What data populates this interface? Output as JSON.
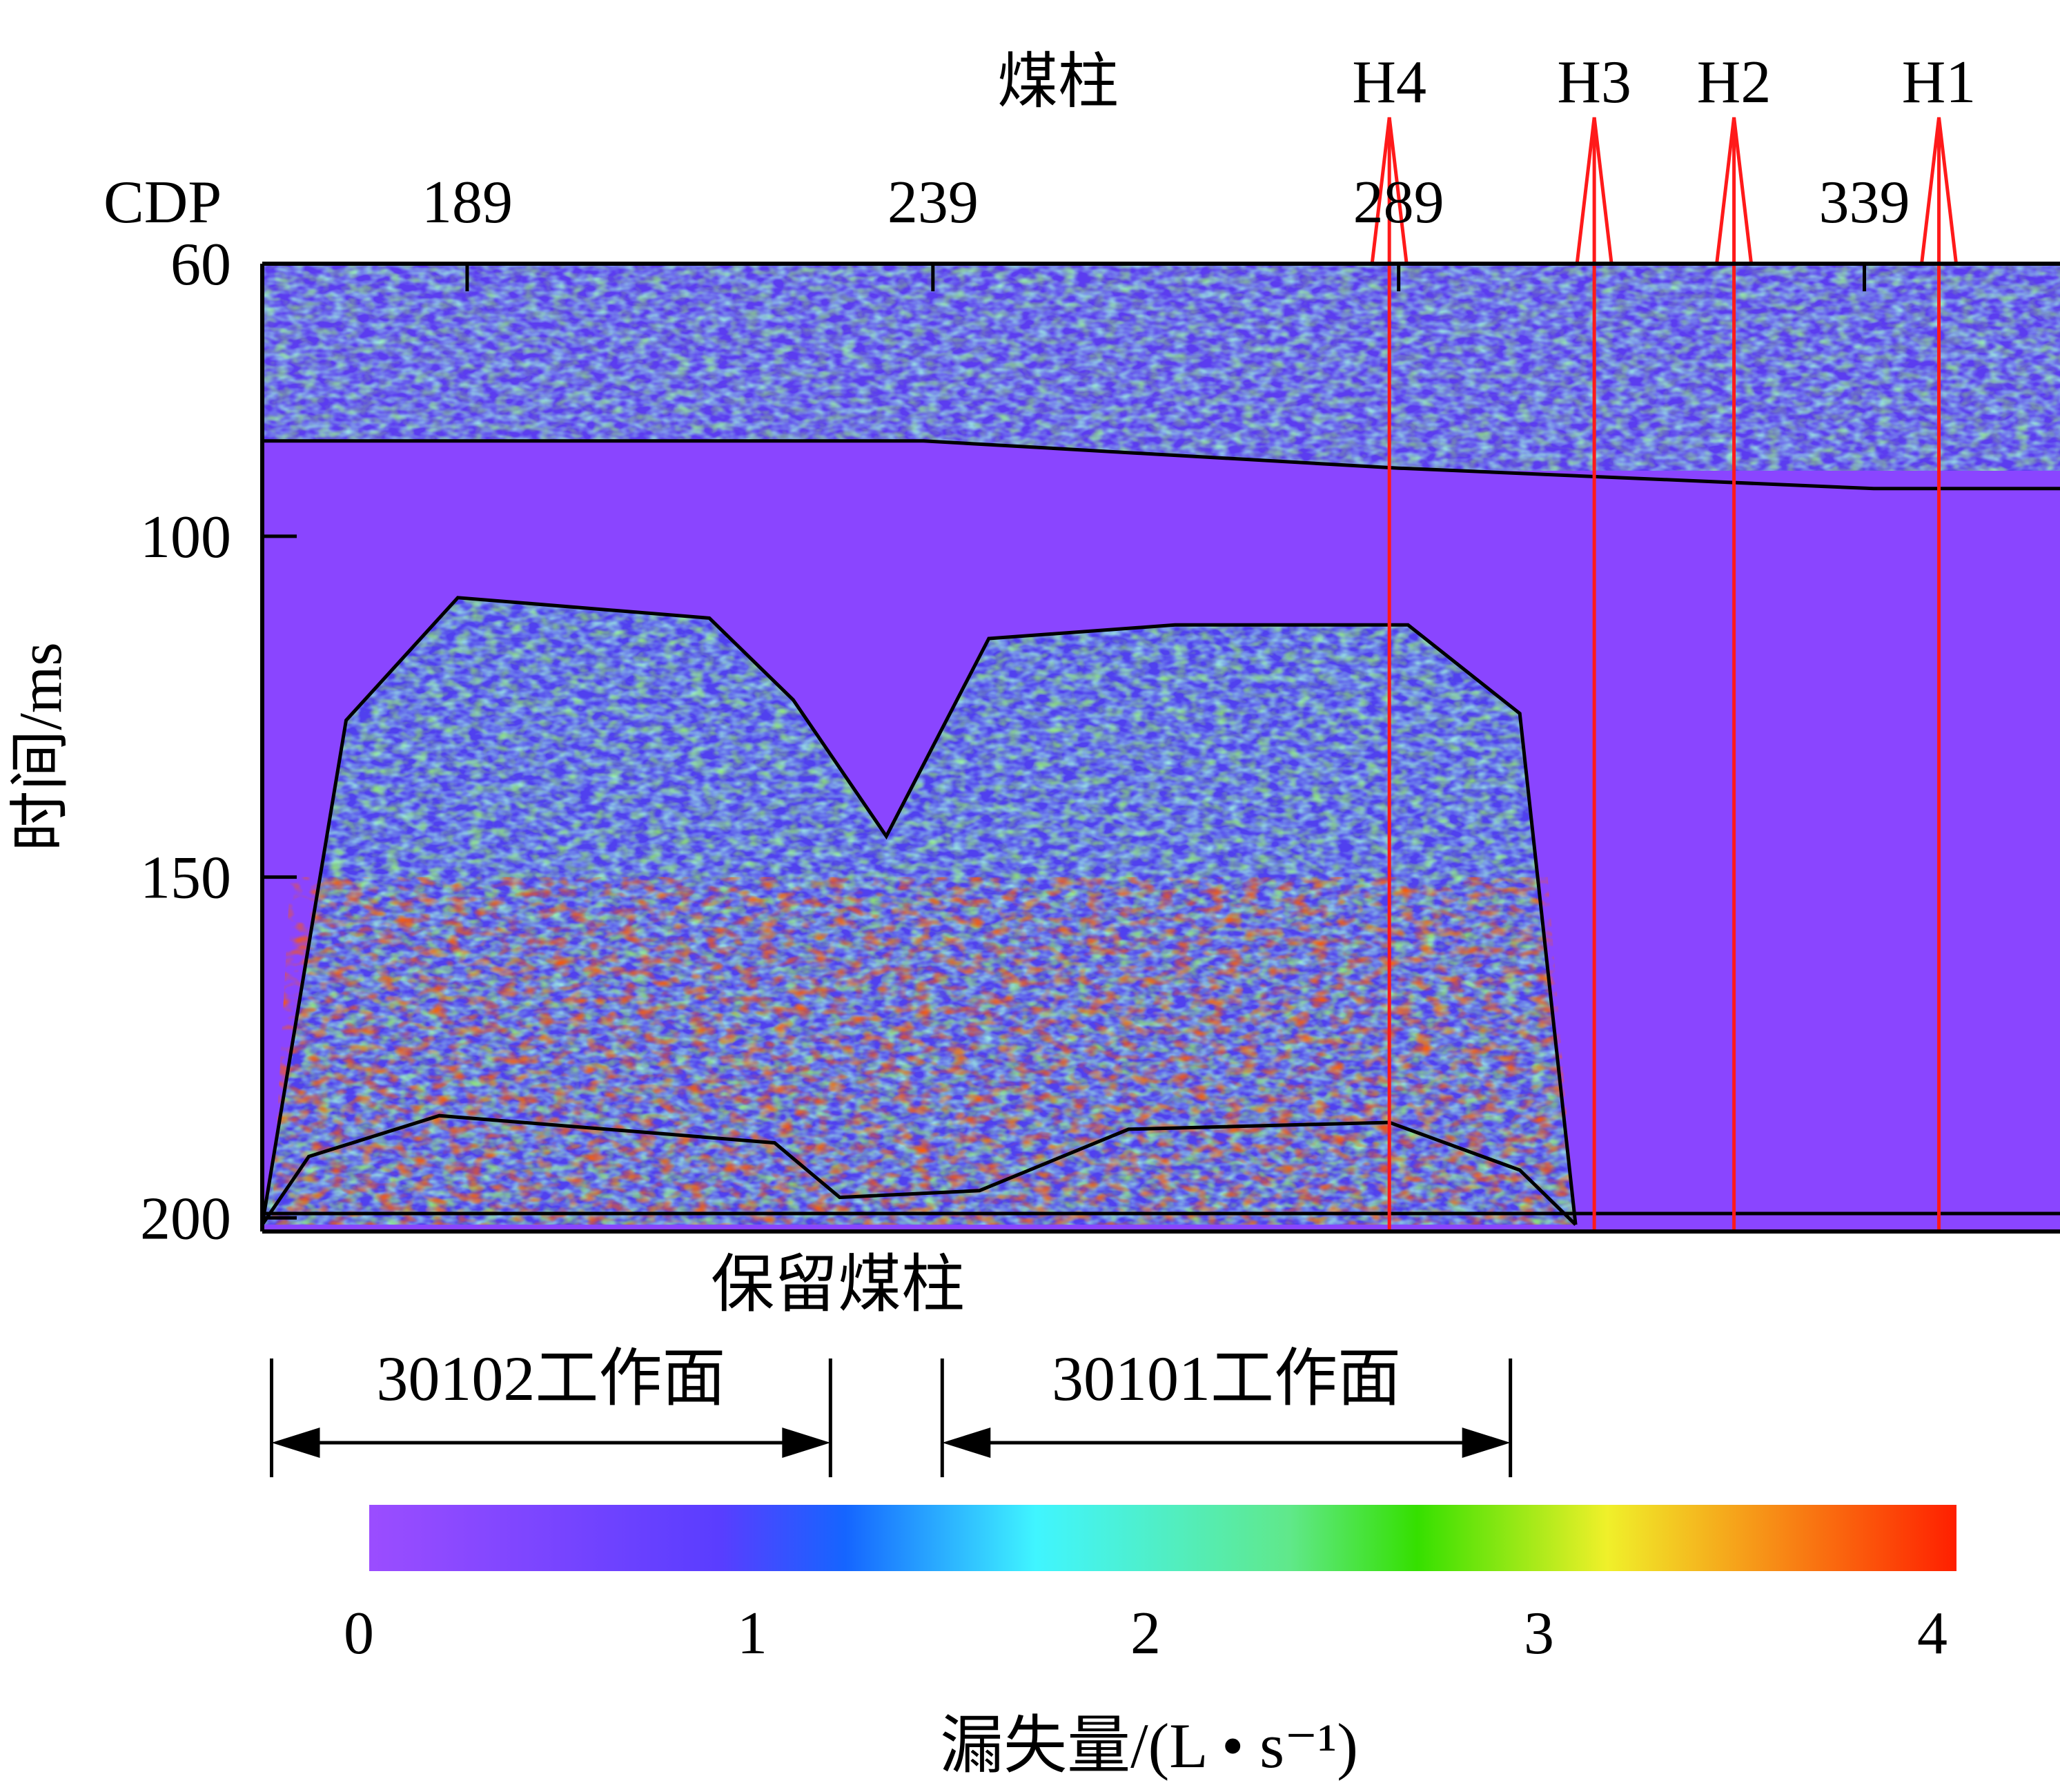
{
  "chart_data": {
    "type": "heatmap",
    "title": "",
    "ylabel": "时间/ms",
    "x_axis_title": "CDP",
    "x_ticks": [
      189,
      239,
      289,
      339
    ],
    "y_ticks": [
      60,
      100,
      150,
      200
    ],
    "xlim": [
      167,
      360
    ],
    "ylim": [
      60,
      202
    ],
    "boreholes": [
      {
        "label": "H4",
        "cdp": 288
      },
      {
        "label": "H3",
        "cdp": 310
      },
      {
        "label": "H2",
        "cdp": 325
      },
      {
        "label": "H1",
        "cdp": 347
      }
    ],
    "coal_pillar_marker": "煤柱",
    "coal_pillar_retained": "保留煤柱",
    "colorbar": {
      "label": "漏失量/(L • s⁻¹)",
      "ticks": [
        0,
        1,
        2,
        3,
        4
      ],
      "range": [
        0,
        4
      ],
      "colors": [
        "#9b4dff",
        "#1565ff",
        "#40f5ff",
        "#35e000",
        "#f0f02a",
        "#ff1f00"
      ]
    },
    "workfaces": [
      {
        "label": "30102工作面",
        "cdp_start": 168,
        "cdp_end": 228
      },
      {
        "label": "30101工作面",
        "cdp_start": 240,
        "cdp_end": 301
      }
    ],
    "boundaries": {
      "upper_layer_ms": [
        [
          167,
          86
        ],
        [
          238,
          86
        ],
        [
          289,
          90
        ],
        [
          340,
          93
        ],
        [
          360,
          93
        ]
      ],
      "caving_zone_ms": [
        [
          167,
          201
        ],
        [
          176,
          127
        ],
        [
          188,
          109
        ],
        [
          215,
          112
        ],
        [
          224,
          124
        ],
        [
          234,
          144
        ],
        [
          245,
          115
        ],
        [
          265,
          113
        ],
        [
          290,
          113
        ],
        [
          302,
          126
        ],
        [
          308,
          201
        ]
      ],
      "fracture_zone_ms": [
        [
          167,
          201
        ],
        [
          172,
          191
        ],
        [
          186,
          185
        ],
        [
          222,
          189
        ],
        [
          229,
          197
        ],
        [
          244,
          196
        ],
        [
          260,
          187
        ],
        [
          288,
          186
        ],
        [
          302,
          193
        ],
        [
          308,
          201
        ]
      ]
    }
  }
}
